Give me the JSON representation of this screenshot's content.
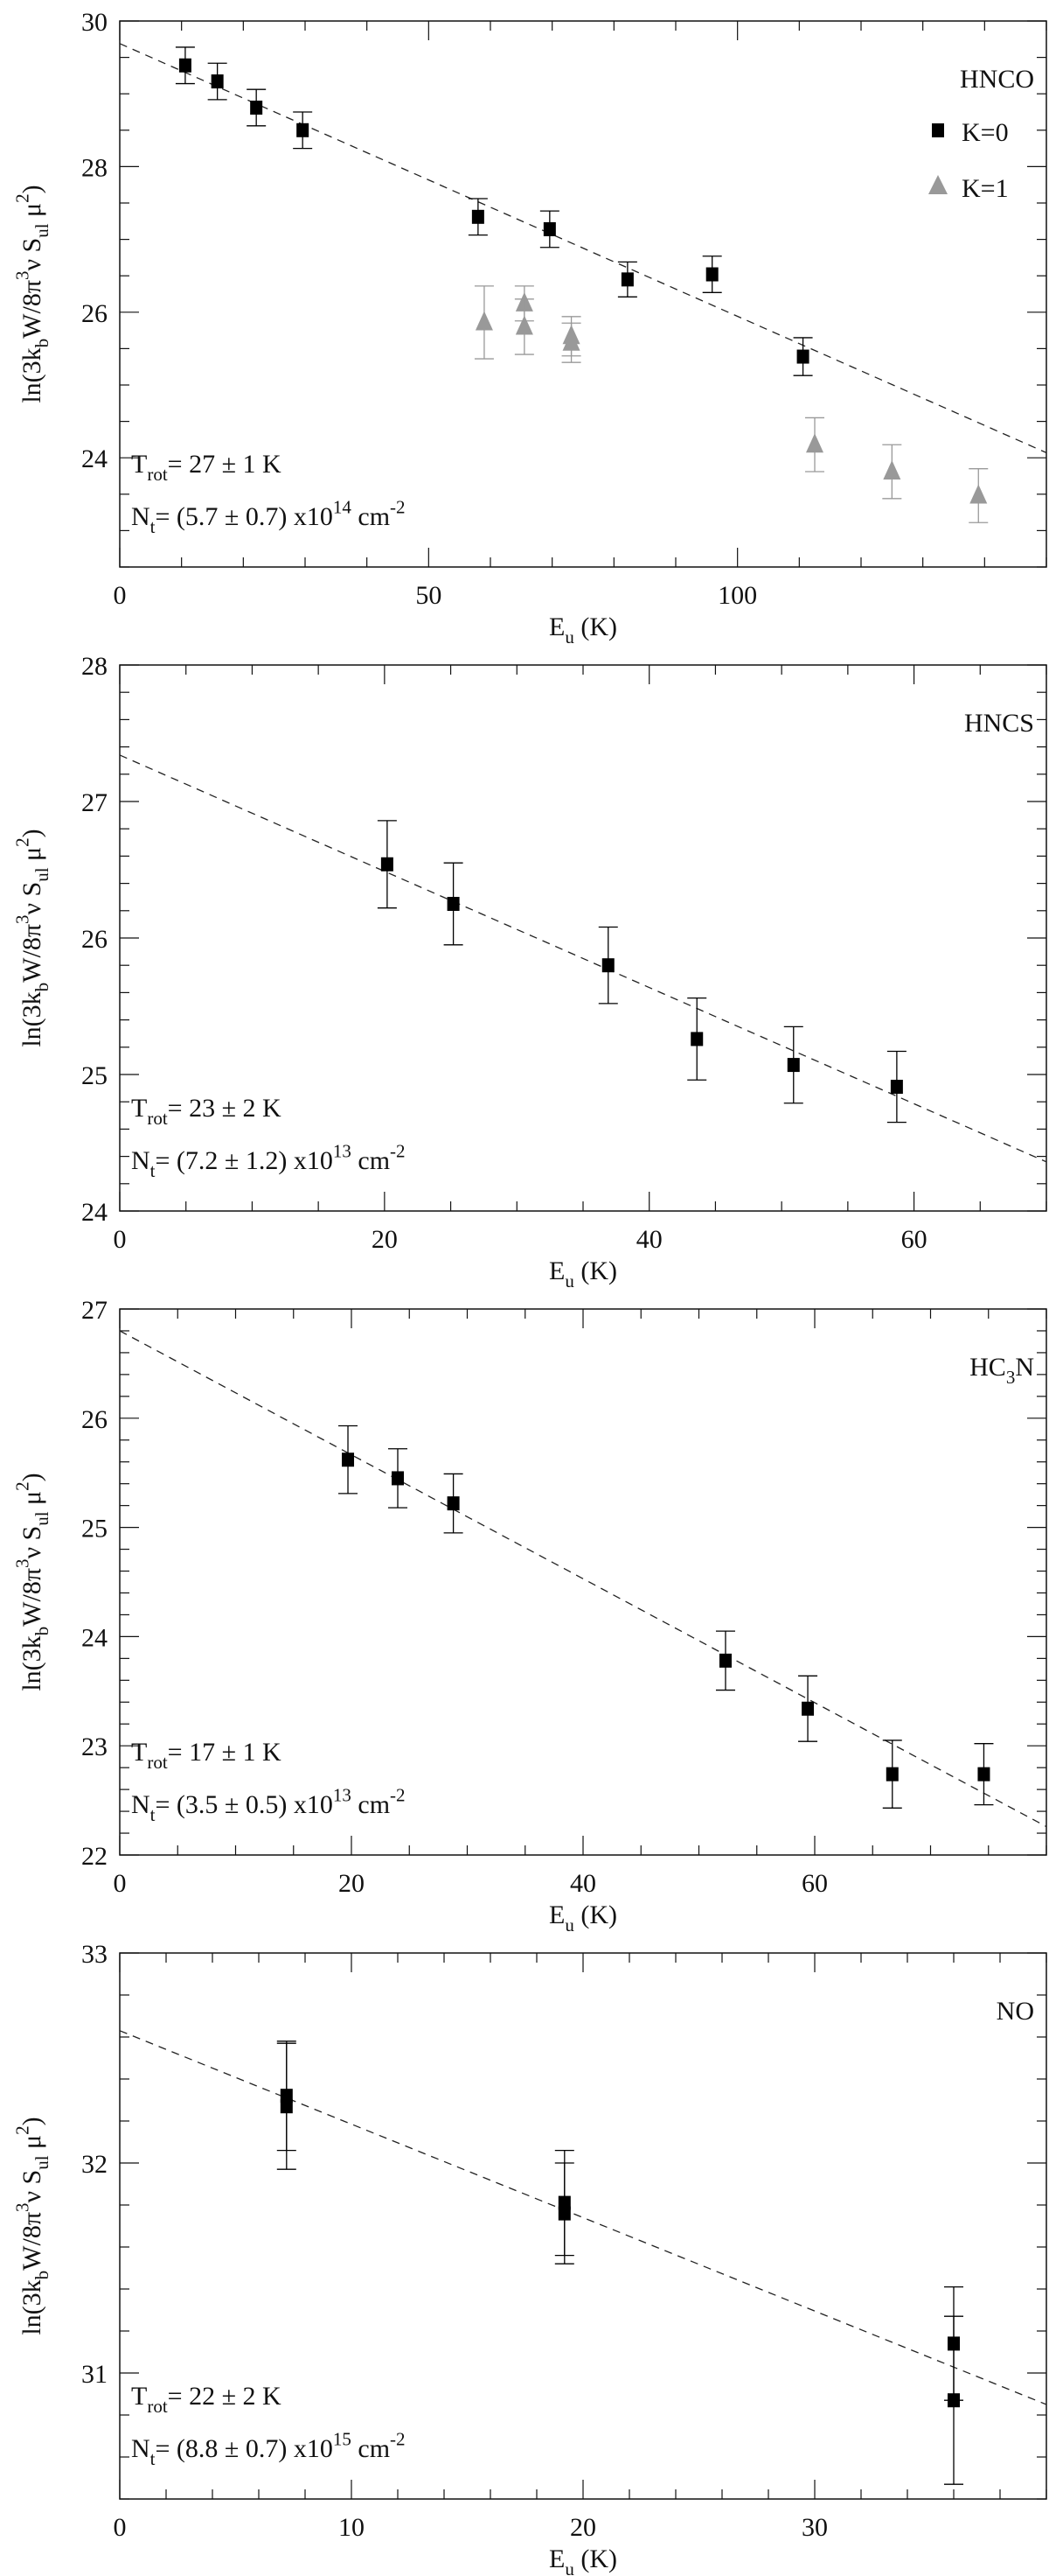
{
  "chart_data": [
    {
      "type": "scatter",
      "title": "HNCO",
      "molecule": [
        {
          "t": "HNCO"
        }
      ],
      "xlabel": [
        {
          "t": "E"
        },
        {
          "t": "u",
          "s": "sub"
        },
        {
          "t": " (K)"
        }
      ],
      "ylabel": [
        {
          "t": "ln(3k"
        },
        {
          "t": "b",
          "s": "sub"
        },
        {
          "t": "W/8π"
        },
        {
          "t": "3",
          "s": "sup"
        },
        {
          "t": "ν  S"
        },
        {
          "t": "ul",
          "s": "sub"
        },
        {
          "t": "  μ"
        },
        {
          "t": "2",
          "s": "sup"
        },
        {
          "t": ")"
        }
      ],
      "xlim": [
        0,
        150
      ],
      "ylim": [
        22.5,
        30
      ],
      "xticks": [
        0,
        50,
        100
      ],
      "xminor": 10,
      "yticks": [
        24,
        26,
        28,
        30
      ],
      "yminor": 0.5,
      "legend_position": "top-right",
      "series": [
        {
          "name": "K=0",
          "marker": "square",
          "color": "#000000",
          "points": [
            [
              10.6,
              29.39,
              0.25
            ],
            [
              15.8,
              29.17,
              0.25
            ],
            [
              22.1,
              28.81,
              0.25
            ],
            [
              29.6,
              28.5,
              0.25
            ],
            [
              58.0,
              27.31,
              0.25
            ],
            [
              69.6,
              27.14,
              0.25
            ],
            [
              82.2,
              26.45,
              0.24
            ],
            [
              95.9,
              26.52,
              0.25
            ],
            [
              110.6,
              25.39,
              0.26
            ]
          ]
        },
        {
          "name": "K=1",
          "marker": "triangle",
          "color": "#999999",
          "points": [
            [
              59.0,
              25.86,
              0.5
            ],
            [
              65.5,
              26.12,
              0.24
            ],
            [
              65.5,
              25.8,
              0.38
            ],
            [
              73.1,
              25.67,
              0.27
            ],
            [
              73.1,
              25.58,
              0.27
            ],
            [
              112.5,
              24.18,
              0.37
            ],
            [
              125.0,
              23.81,
              0.37
            ],
            [
              139.0,
              23.48,
              0.37
            ]
          ]
        }
      ],
      "fit": [
        [
          0,
          29.69
        ],
        [
          150,
          24.07
        ]
      ],
      "annotations": {
        "trot": [
          {
            "t": "T"
          },
          {
            "t": "rot",
            "s": "sub"
          },
          {
            "t": "= 27 ± 1 K"
          }
        ],
        "nt": [
          {
            "t": "N"
          },
          {
            "t": "t",
            "s": "sub"
          },
          {
            "t": "= (5.7 ± 0.7) x10"
          },
          {
            "t": "14",
            "s": "sup"
          },
          {
            "t": " cm"
          },
          {
            "t": "-2",
            "s": "sup"
          }
        ]
      }
    },
    {
      "type": "scatter",
      "title": "HNCS",
      "molecule": [
        {
          "t": "HNCS"
        }
      ],
      "xlabel": [
        {
          "t": "E"
        },
        {
          "t": "u",
          "s": "sub"
        },
        {
          "t": " (K)"
        }
      ],
      "ylabel": [
        {
          "t": "ln(3k"
        },
        {
          "t": "b",
          "s": "sub"
        },
        {
          "t": "W/8π"
        },
        {
          "t": "3",
          "s": "sup"
        },
        {
          "t": "ν  S"
        },
        {
          "t": "ul",
          "s": "sub"
        },
        {
          "t": "  μ"
        },
        {
          "t": "2",
          "s": "sup"
        },
        {
          "t": ")"
        }
      ],
      "xlim": [
        0,
        70
      ],
      "ylim": [
        24,
        28
      ],
      "xticks": [
        0,
        20,
        40,
        60
      ],
      "xminor": 5,
      "yticks": [
        24,
        25,
        26,
        27,
        28
      ],
      "yminor": 0.2,
      "series": [
        {
          "name": "data",
          "marker": "square",
          "color": "#000000",
          "points": [
            [
              20.2,
              26.54,
              0.32
            ],
            [
              25.2,
              26.25,
              0.3
            ],
            [
              36.9,
              25.8,
              0.28
            ],
            [
              43.6,
              25.26,
              0.3
            ],
            [
              50.9,
              25.07,
              0.28
            ],
            [
              58.7,
              24.91,
              0.26
            ]
          ]
        }
      ],
      "fit": [
        [
          0,
          27.34
        ],
        [
          70,
          24.36
        ]
      ],
      "annotations": {
        "trot": [
          {
            "t": "T"
          },
          {
            "t": "rot",
            "s": "sub"
          },
          {
            "t": "= 23 ± 2 K"
          }
        ],
        "nt": [
          {
            "t": "N"
          },
          {
            "t": "t",
            "s": "sub"
          },
          {
            "t": "= (7.2 ± 1.2) x10"
          },
          {
            "t": "13",
            "s": "sup"
          },
          {
            "t": " cm"
          },
          {
            "t": "-2",
            "s": "sup"
          }
        ]
      }
    },
    {
      "type": "scatter",
      "title": "HC3N",
      "molecule": [
        {
          "t": "HC"
        },
        {
          "t": "3",
          "s": "sub"
        },
        {
          "t": "N"
        }
      ],
      "xlabel": [
        {
          "t": "E"
        },
        {
          "t": "u",
          "s": "sub"
        },
        {
          "t": " (K)"
        }
      ],
      "ylabel": [
        {
          "t": "ln(3k"
        },
        {
          "t": "b",
          "s": "sub"
        },
        {
          "t": "W/8π"
        },
        {
          "t": "3",
          "s": "sup"
        },
        {
          "t": "ν  S"
        },
        {
          "t": "ul",
          "s": "sub"
        },
        {
          "t": "  μ"
        },
        {
          "t": "2",
          "s": "sup"
        },
        {
          "t": ")"
        }
      ],
      "xlim": [
        0,
        80
      ],
      "ylim": [
        22,
        27
      ],
      "xticks": [
        0,
        20,
        40,
        60
      ],
      "xminor": 5,
      "yticks": [
        22,
        23,
        24,
        25,
        26,
        27
      ],
      "yminor": 0.2,
      "series": [
        {
          "name": "data",
          "marker": "square",
          "color": "#000000",
          "points": [
            [
              19.7,
              25.62,
              0.31
            ],
            [
              24.0,
              25.45,
              0.27
            ],
            [
              28.8,
              25.22,
              0.27
            ],
            [
              52.3,
              23.78,
              0.27
            ],
            [
              59.4,
              23.34,
              0.3
            ],
            [
              66.7,
              22.74,
              0.31
            ],
            [
              74.6,
              22.74,
              0.28
            ]
          ]
        }
      ],
      "fit": [
        [
          0,
          26.8
        ],
        [
          80,
          22.26
        ]
      ],
      "annotations": {
        "trot": [
          {
            "t": "T"
          },
          {
            "t": "rot",
            "s": "sub"
          },
          {
            "t": "= 17 ± 1 K"
          }
        ],
        "nt": [
          {
            "t": "N"
          },
          {
            "t": "t",
            "s": "sub"
          },
          {
            "t": "= (3.5 ± 0.5) x10"
          },
          {
            "t": "13",
            "s": "sup"
          },
          {
            "t": " cm"
          },
          {
            "t": "-2",
            "s": "sup"
          }
        ]
      }
    },
    {
      "type": "scatter",
      "title": "NO",
      "molecule": [
        {
          "t": "NO"
        }
      ],
      "xlabel": [
        {
          "t": "E"
        },
        {
          "t": "u",
          "s": "sub"
        },
        {
          "t": " (K)"
        }
      ],
      "ylabel": [
        {
          "t": "ln(3k"
        },
        {
          "t": "b",
          "s": "sub"
        },
        {
          "t": "W/8π"
        },
        {
          "t": "3",
          "s": "sup"
        },
        {
          "t": "ν  S"
        },
        {
          "t": "ul",
          "s": "sub"
        },
        {
          "t": "  μ"
        },
        {
          "t": "2",
          "s": "sup"
        },
        {
          "t": ")"
        }
      ],
      "xlim": [
        0,
        40
      ],
      "ylim": [
        30.4,
        33
      ],
      "xticks": [
        0,
        10,
        20,
        30
      ],
      "xminor": 2,
      "yticks": [
        31,
        32,
        33
      ],
      "yminor": 0.2,
      "series": [
        {
          "name": "data",
          "marker": "square",
          "color": "#000000",
          "points": [
            [
              7.2,
              32.32,
              0.26
            ],
            [
              7.2,
              32.27,
              0.3
            ],
            [
              19.2,
              31.81,
              0.25
            ],
            [
              19.2,
              31.76,
              0.24
            ],
            [
              36.0,
              31.14,
              0.27
            ],
            [
              36.0,
              30.87,
              0.4
            ]
          ]
        }
      ],
      "fit": [
        [
          0,
          32.63
        ],
        [
          40,
          30.85
        ]
      ],
      "annotations": {
        "trot": [
          {
            "t": "T"
          },
          {
            "t": "rot",
            "s": "sub"
          },
          {
            "t": "= 22 ± 2 K"
          }
        ],
        "nt": [
          {
            "t": "N"
          },
          {
            "t": "t",
            "s": "sub"
          },
          {
            "t": "= (8.8 ± 0.7) x10"
          },
          {
            "t": "15",
            "s": "sup"
          },
          {
            "t": " cm"
          },
          {
            "t": "-2",
            "s": "sup"
          }
        ]
      }
    }
  ]
}
